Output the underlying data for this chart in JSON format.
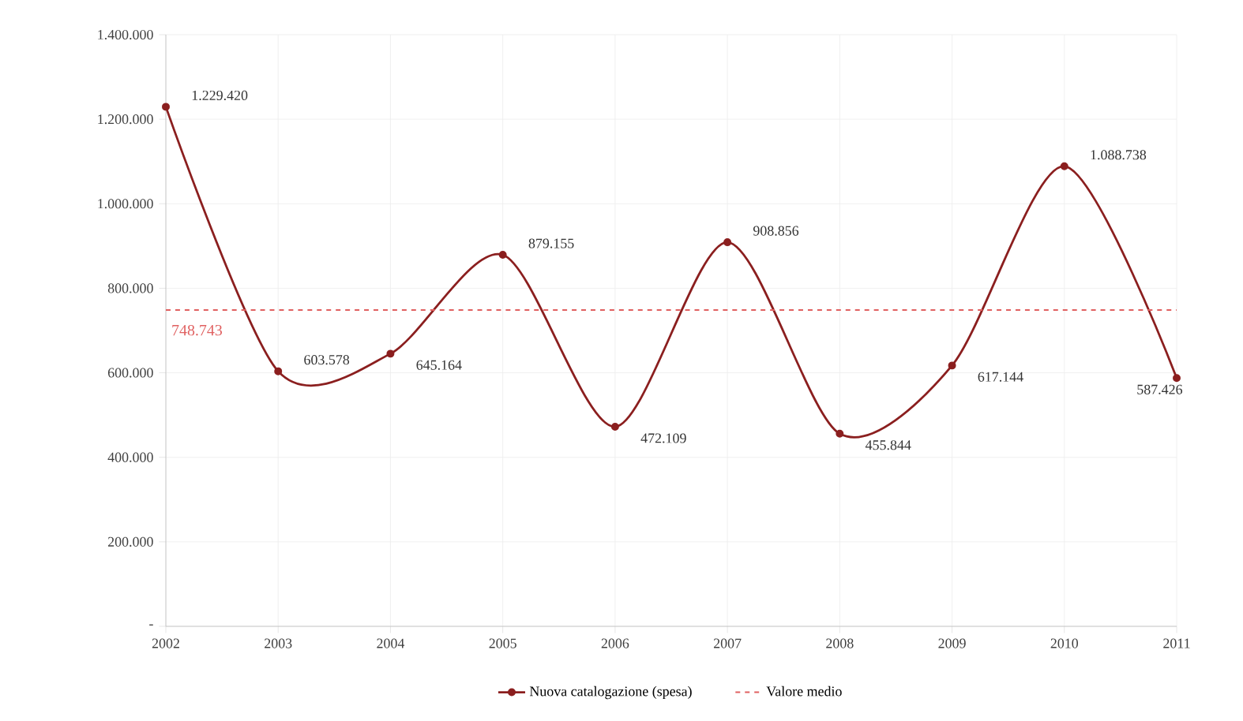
{
  "chart_data": {
    "type": "line",
    "categories": [
      "2002",
      "2003",
      "2004",
      "2005",
      "2006",
      "2007",
      "2008",
      "2009",
      "2010",
      "2011"
    ],
    "series": [
      {
        "name": "Nuova catalogazione (spesa)",
        "color": "#8b1f1f",
        "values": [
          1229420,
          603578,
          645164,
          879155,
          472109,
          908856,
          455844,
          617144,
          1088738,
          587426
        ],
        "value_labels": [
          "1.229.420",
          "603.578",
          "645.164",
          "879.155",
          "472.109",
          "908.856",
          "455.844",
          "617.144",
          "1.088.738",
          "587.426"
        ]
      }
    ],
    "ylim": [
      0,
      1400000
    ],
    "yticks": [
      {
        "value": 0,
        "label": "-"
      },
      {
        "value": 200000,
        "label": "200.000"
      },
      {
        "value": 400000,
        "label": "400.000"
      },
      {
        "value": 600000,
        "label": "600.000"
      },
      {
        "value": 800000,
        "label": "800.000"
      },
      {
        "value": 1000000,
        "label": "1.000.000"
      },
      {
        "value": 1200000,
        "label": "1.200.000"
      },
      {
        "value": 1400000,
        "label": "1.400.000"
      }
    ],
    "ref_lines": [
      {
        "axis": "y",
        "value": 748743,
        "label": "Valore medio",
        "color": "#e06060",
        "line_style": "dashed"
      }
    ],
    "annotations": [
      {
        "text": "748.743",
        "x": "2002",
        "y": 748743
      }
    ],
    "grid": true,
    "legend": "bottom",
    "marker": "circle",
    "line_style": "solid"
  }
}
